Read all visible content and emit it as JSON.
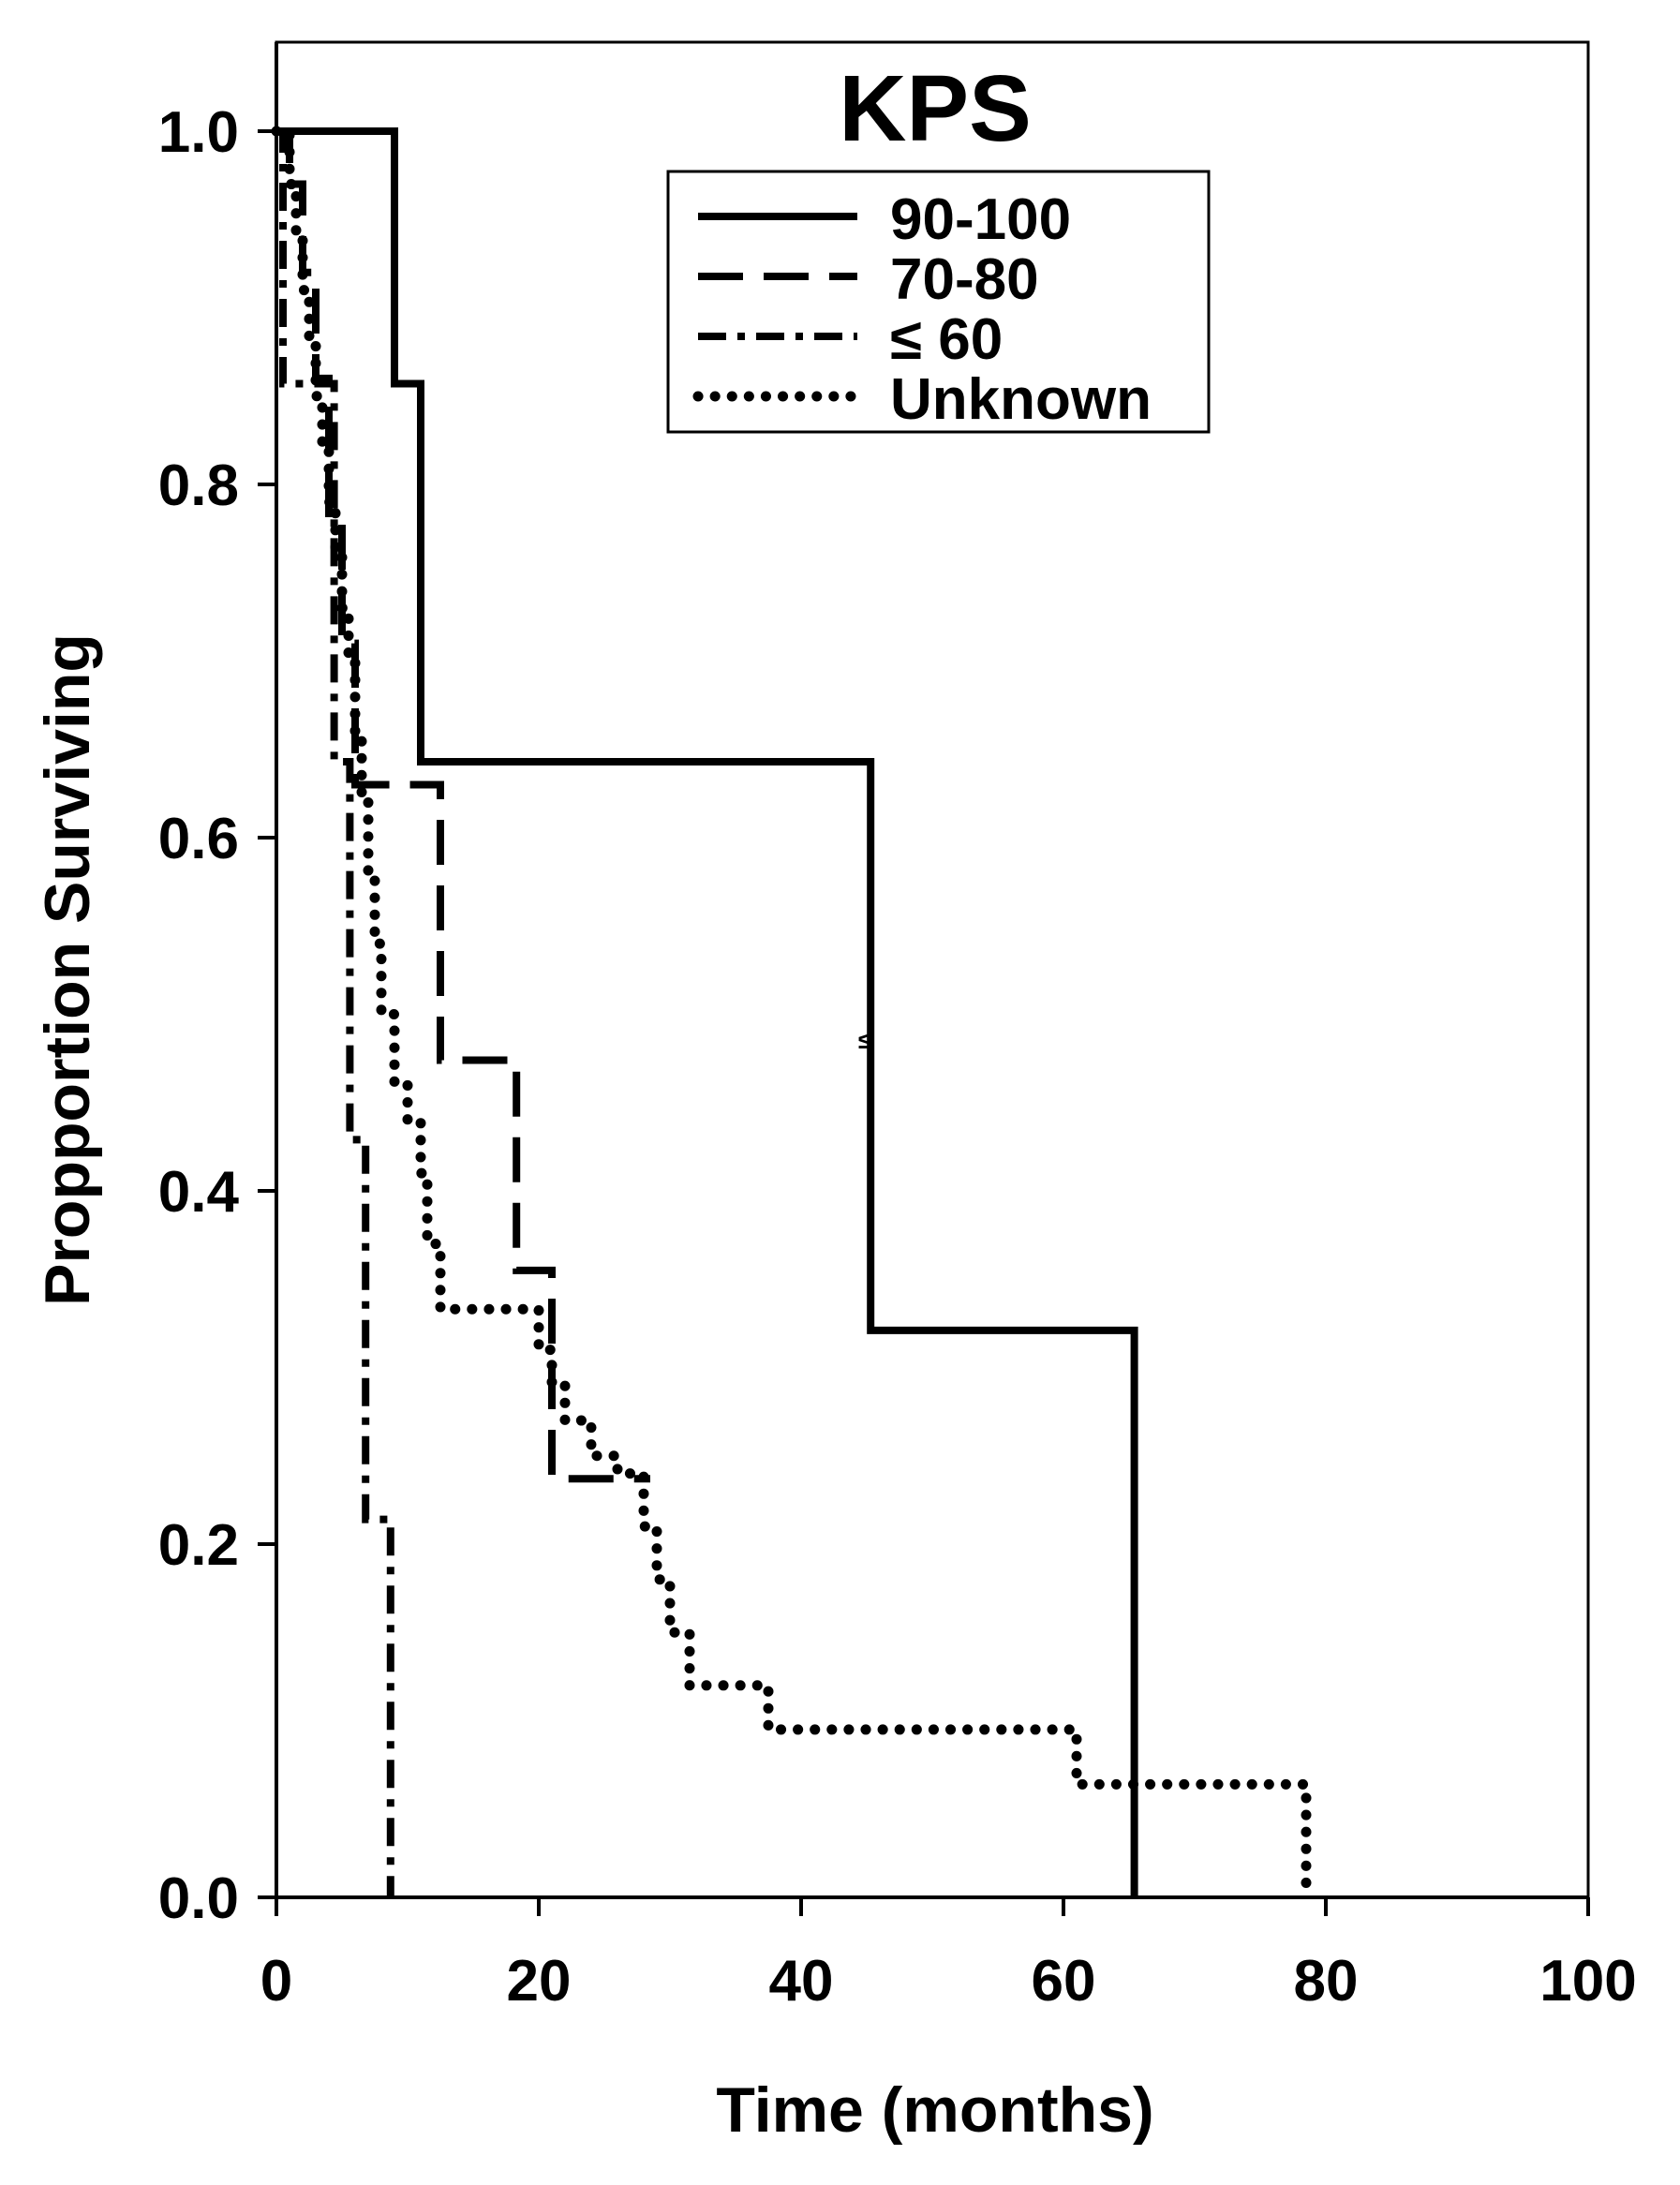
{
  "chart_data": {
    "type": "line",
    "title": "KPS",
    "xlabel": "Time (months)",
    "ylabel": "Propportion Surviving",
    "xlim": [
      0,
      100
    ],
    "ylim": [
      0,
      1.0
    ],
    "x_ticks": [
      0,
      20,
      40,
      60,
      80,
      100
    ],
    "y_ticks": [
      0.0,
      0.2,
      0.4,
      0.6,
      0.8,
      1.0
    ],
    "x_tick_labels": [
      "0",
      "20",
      "40",
      "60",
      "80",
      "100"
    ],
    "y_tick_labels": [
      "0.0",
      "0.2",
      "0.4",
      "0.6",
      "0.8",
      "1.0"
    ],
    "grid": false,
    "legend_position": "top-center",
    "step": true,
    "series": [
      {
        "name": "90-100",
        "style": "solid",
        "x": [
          0,
          9,
          11,
          45.3,
          65.4
        ],
        "y": [
          1.0,
          0.857,
          0.643,
          0.321,
          0.0
        ]
      },
      {
        "name": "70-80",
        "style": "dashed",
        "x": [
          0,
          1,
          2,
          3,
          4,
          5,
          6,
          12.5,
          18.3,
          21,
          28.5
        ],
        "y": [
          1.0,
          0.97,
          0.92,
          0.86,
          0.78,
          0.71,
          0.63,
          0.474,
          0.355,
          0.237,
          0.237
        ]
      },
      {
        "name": "≤ 60",
        "style": "dash-dot",
        "x": [
          0,
          0.5,
          4.4,
          5.6,
          6.8,
          8.7
        ],
        "y": [
          1.0,
          0.857,
          0.643,
          0.429,
          0.214,
          0.0
        ]
      },
      {
        "name": "Unknown",
        "style": "dotted",
        "x": [
          0,
          1,
          1.5,
          2,
          2.5,
          3,
          3.5,
          4,
          4.5,
          5,
          5.5,
          6,
          6.5,
          7,
          7.5,
          8,
          9,
          10,
          11,
          11.5,
          12.5,
          20,
          21,
          22,
          24,
          26,
          28,
          29,
          30,
          31.5,
          37.5,
          61,
          78.5
        ],
        "y": [
          1.0,
          0.97,
          0.94,
          0.91,
          0.88,
          0.85,
          0.82,
          0.79,
          0.76,
          0.73,
          0.7,
          0.66,
          0.62,
          0.58,
          0.54,
          0.5,
          0.46,
          0.44,
          0.41,
          0.37,
          0.333,
          0.31,
          0.29,
          0.27,
          0.25,
          0.24,
          0.21,
          0.18,
          0.15,
          0.12,
          0.095,
          0.064,
          0.0
        ]
      }
    ],
    "annotations": [
      {
        "text": "≤",
        "x": 44,
        "y": 0.485
      }
    ]
  }
}
